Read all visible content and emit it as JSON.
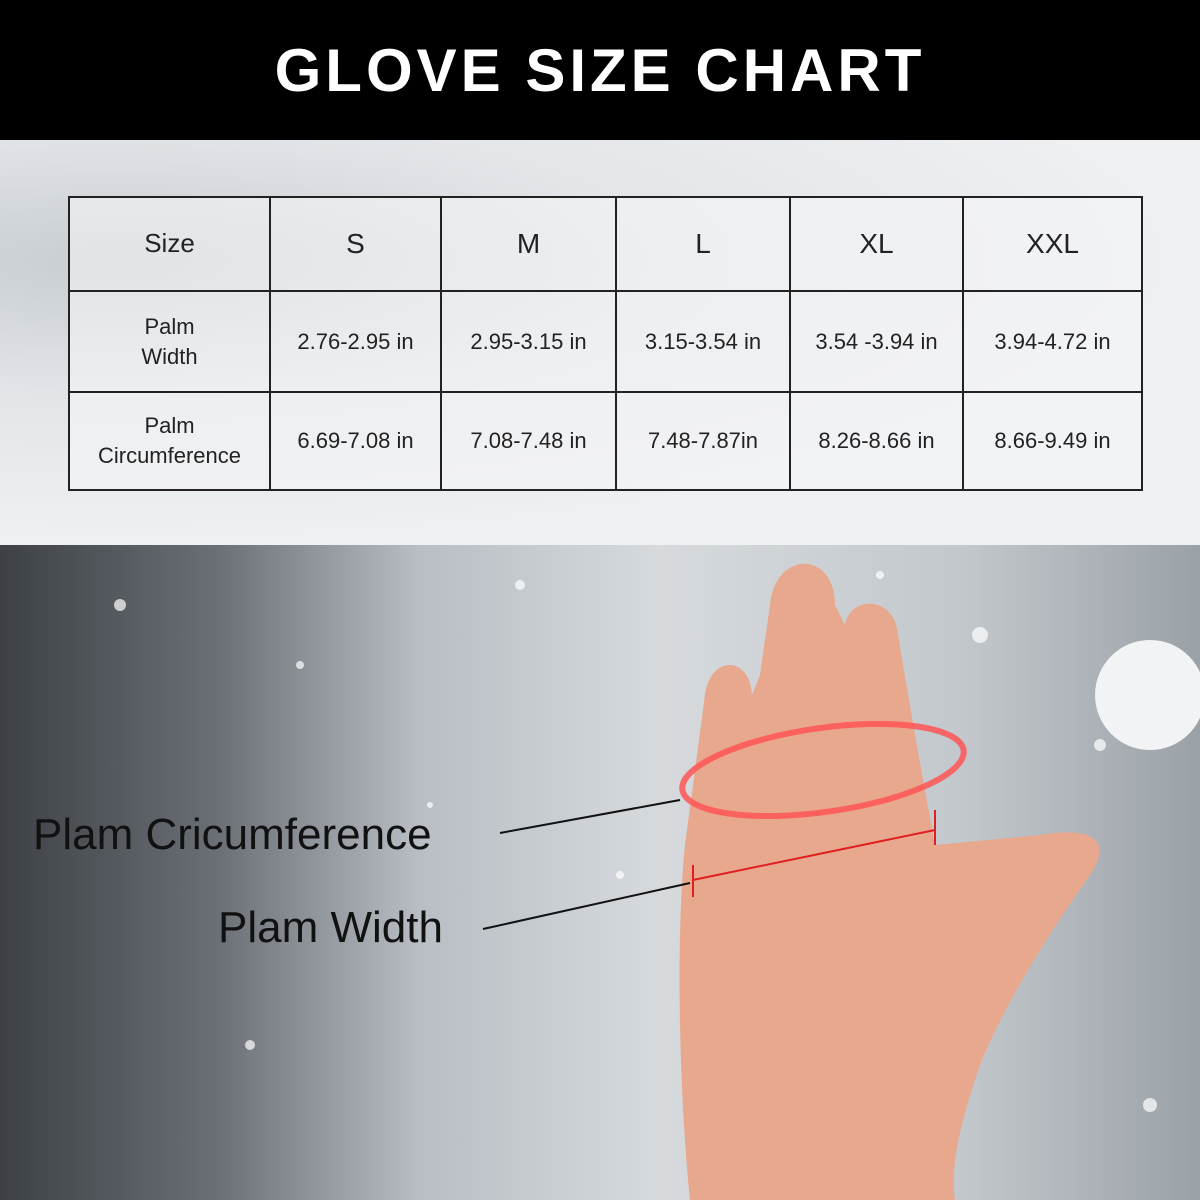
{
  "header": {
    "title": "GLOVE SIZE CHART"
  },
  "table": {
    "headers": [
      "Size",
      "S",
      "M",
      "L",
      "XL",
      "XXL"
    ],
    "rows": [
      {
        "label_lines": [
          "Palm",
          "Width"
        ],
        "values": [
          "2.76-2.95 in",
          "2.95-3.15 in",
          "3.15-3.54 in",
          "3.54 -3.94 in",
          "3.94-4.72 in"
        ]
      },
      {
        "label_lines": [
          "Palm",
          "Circumference"
        ],
        "values": [
          "6.69-7.08 in",
          "7.08-7.48 in",
          "7.48-7.87in",
          "8.26-8.66 in",
          "8.66-9.49  in"
        ]
      }
    ]
  },
  "annotations": {
    "circumference": "Plam Cricumference",
    "width": "Plam Width"
  },
  "colors": {
    "header_bg": "#000000",
    "measure_red": "#e02020"
  }
}
